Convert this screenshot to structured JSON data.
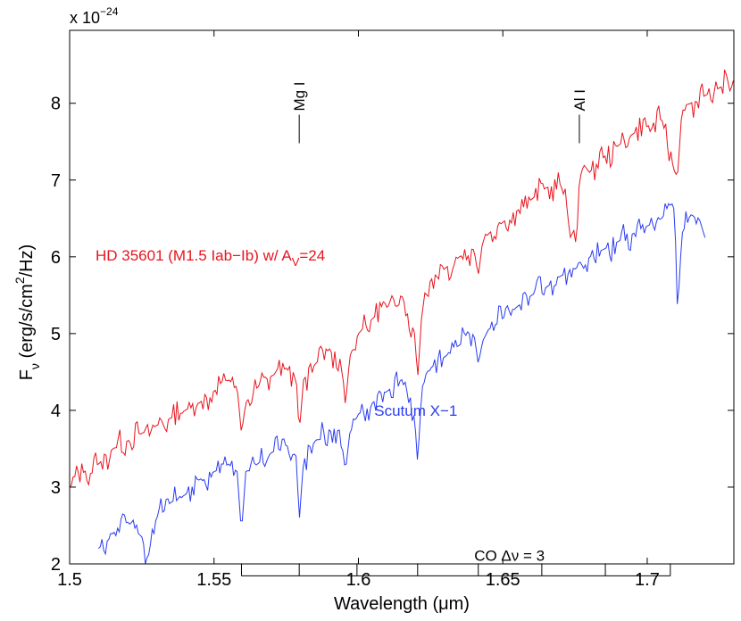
{
  "chart_data": {
    "type": "line",
    "x_exponent_label": "x 10",
    "x_exponent_power": "−24",
    "xlabel": "Wavelength (μm)",
    "ylabel_main": "F",
    "ylabel_sub": "ν",
    "ylabel_rest": " (erg/s/cm",
    "ylabel_sup": "2",
    "ylabel_end": "/Hz)",
    "xlim": [
      1.5,
      1.73
    ],
    "ylim": [
      2,
      8.95
    ],
    "xticks": [
      1.5,
      1.55,
      1.6,
      1.65,
      1.7
    ],
    "xtick_labels": [
      "1.5",
      "1.55",
      "1.6",
      "1.65",
      "1.7"
    ],
    "yticks": [
      2,
      3,
      4,
      5,
      6,
      7,
      8
    ],
    "ytick_labels": [
      "2",
      "3",
      "4",
      "5",
      "6",
      "7",
      "8"
    ],
    "series": [
      {
        "name": "HD 35601",
        "color": "#e8141e",
        "label_parts": [
          "HD 35601 (M1.5 Iab−Ib) w/ A",
          "V",
          "=24"
        ],
        "x": [
          1.5,
          1.505,
          1.51,
          1.515,
          1.52,
          1.525,
          1.53,
          1.535,
          1.54,
          1.545,
          1.55,
          1.555,
          1.558,
          1.5595,
          1.561,
          1.565,
          1.57,
          1.575,
          1.5785,
          1.5795,
          1.581,
          1.585,
          1.59,
          1.5945,
          1.5955,
          1.597,
          1.6,
          1.605,
          1.61,
          1.615,
          1.6195,
          1.6205,
          1.622,
          1.625,
          1.63,
          1.635,
          1.64,
          1.6415,
          1.643,
          1.645,
          1.65,
          1.655,
          1.66,
          1.665,
          1.67,
          1.6755,
          1.6765,
          1.678,
          1.68,
          1.685,
          1.69,
          1.695,
          1.7,
          1.705,
          1.7095,
          1.7105,
          1.712,
          1.715,
          1.72,
          1.725,
          1.73
        ],
        "y": [
          3.0,
          3.2,
          3.3,
          3.5,
          3.6,
          3.7,
          3.8,
          3.9,
          4.0,
          4.1,
          4.25,
          4.4,
          4.3,
          3.7,
          4.1,
          4.3,
          4.45,
          4.55,
          4.4,
          3.7,
          4.4,
          4.6,
          4.8,
          4.5,
          4.05,
          4.7,
          5.0,
          5.2,
          5.35,
          5.5,
          5.0,
          4.4,
          5.3,
          5.7,
          5.85,
          6.0,
          6.1,
          5.75,
          6.2,
          6.3,
          6.45,
          6.6,
          6.75,
          6.9,
          6.95,
          6.15,
          7.0,
          7.2,
          7.1,
          7.3,
          7.45,
          7.6,
          7.7,
          7.8,
          7.1,
          7.05,
          7.9,
          8.0,
          8.1,
          8.2,
          8.3
        ]
      },
      {
        "name": "Scutum X−1",
        "color": "#2b3cf0",
        "x": [
          1.51,
          1.515,
          1.52,
          1.525,
          1.527,
          1.53,
          1.535,
          1.54,
          1.545,
          1.55,
          1.555,
          1.558,
          1.5595,
          1.561,
          1.565,
          1.57,
          1.575,
          1.5785,
          1.5795,
          1.581,
          1.585,
          1.59,
          1.5945,
          1.5955,
          1.597,
          1.6,
          1.605,
          1.61,
          1.615,
          1.6195,
          1.6205,
          1.622,
          1.625,
          1.63,
          1.635,
          1.64,
          1.6415,
          1.643,
          1.645,
          1.65,
          1.655,
          1.66,
          1.665,
          1.67,
          1.6755,
          1.6765,
          1.678,
          1.68,
          1.685,
          1.69,
          1.695,
          1.7,
          1.705,
          1.7085,
          1.7095,
          1.7105,
          1.712,
          1.715,
          1.718,
          1.72
        ],
        "y": [
          2.2,
          2.4,
          2.55,
          2.35,
          2.05,
          2.6,
          2.8,
          2.9,
          3.1,
          3.2,
          3.3,
          3.2,
          2.4,
          3.2,
          3.3,
          3.45,
          3.55,
          3.4,
          2.55,
          3.35,
          3.6,
          3.75,
          3.5,
          3.2,
          3.7,
          3.95,
          4.1,
          4.25,
          4.4,
          3.9,
          3.3,
          4.3,
          4.55,
          4.7,
          4.85,
          5.0,
          4.6,
          4.9,
          5.05,
          5.2,
          5.35,
          5.5,
          5.6,
          5.75,
          5.85,
          5.95,
          5.85,
          6.0,
          6.1,
          6.2,
          6.3,
          6.4,
          6.5,
          6.7,
          6.6,
          5.25,
          6.3,
          6.55,
          6.5,
          6.25
        ]
      }
    ],
    "annotations": [
      {
        "text": "Mg I",
        "x": 1.5795,
        "y": 8.2
      },
      {
        "text": "Al I",
        "x": 1.6765,
        "y": 8.2
      },
      {
        "text": "Scutum X−1",
        "x": 1.6055,
        "y": 4.0
      }
    ],
    "co_bracket": {
      "label": "CO Δν = 3",
      "ticks": [
        1.5595,
        1.5795,
        1.5995,
        1.6205,
        1.6415,
        1.6635,
        1.6855,
        1.708
      ],
      "y": 2.1
    }
  }
}
